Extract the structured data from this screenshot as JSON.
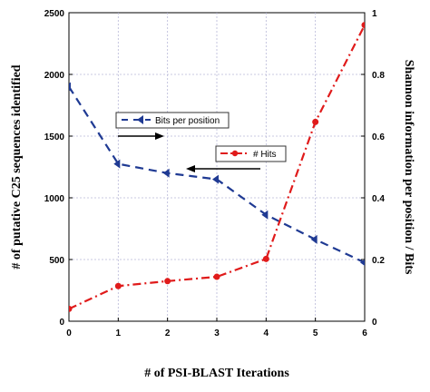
{
  "chart_data": {
    "type": "line",
    "xlabel": "# of PSI-BLAST Iterations",
    "ylabel_left": "# of putative C25 sequences identified",
    "ylabel_right": "Shannon information per position / Bits",
    "x": [
      0,
      1,
      2,
      3,
      4,
      5,
      6
    ],
    "xlim": [
      0,
      6
    ],
    "ylim_left": [
      0,
      2500
    ],
    "ylim_right": [
      0,
      1
    ],
    "xticks": [
      "0",
      "1",
      "2",
      "3",
      "4",
      "5",
      "6"
    ],
    "yticks_left": [
      "0",
      "500",
      "1000",
      "1500",
      "2000",
      "2500"
    ],
    "yticks_right": [
      "0",
      "0.2",
      "0.4",
      "0.6",
      "0.8",
      "1"
    ],
    "grid": true,
    "series": [
      {
        "name": "Bits per position",
        "axis": "right",
        "color": "#1f3a93",
        "line_style": "dashed",
        "marker": "triangle",
        "values": [
          0.76,
          0.51,
          0.48,
          0.46,
          0.345,
          0.265,
          0.19
        ]
      },
      {
        "name": "# Hits",
        "axis": "left",
        "color": "#e01b1b",
        "line_style": "dash-dot",
        "marker": "circle",
        "values": [
          100,
          285,
          325,
          360,
          505,
          1615,
          2400
        ]
      }
    ]
  }
}
